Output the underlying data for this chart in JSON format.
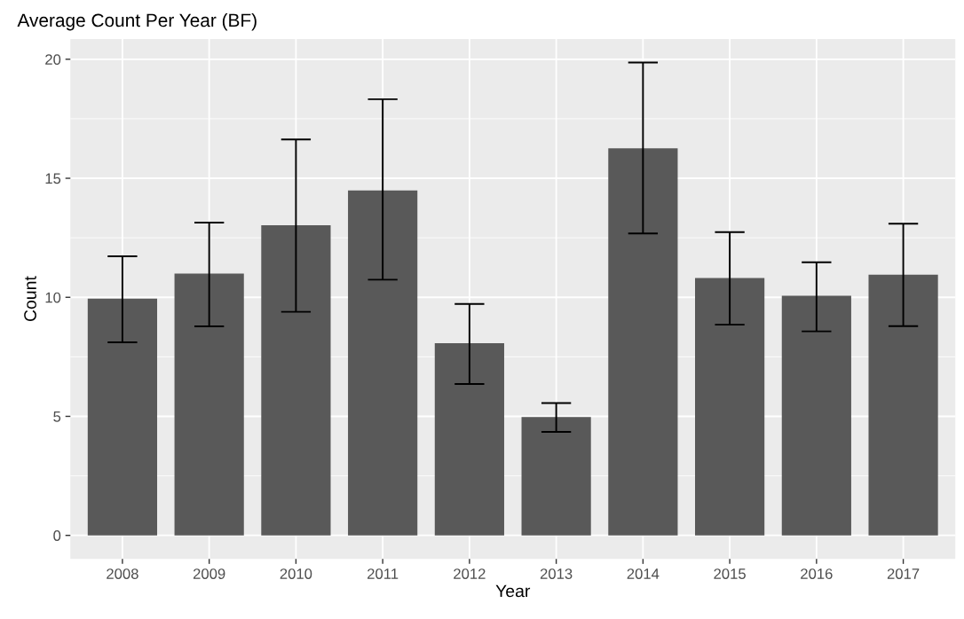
{
  "chart_data": {
    "type": "bar",
    "title": "Average Count Per Year (BF)",
    "xlabel": "Year",
    "ylabel": "Count",
    "categories": [
      "2008",
      "2009",
      "2010",
      "2011",
      "2012",
      "2013",
      "2014",
      "2015",
      "2016",
      "2017"
    ],
    "values": [
      9.94,
      11.0,
      13.03,
      14.49,
      8.07,
      4.97,
      16.26,
      10.81,
      10.07,
      10.95
    ],
    "errors": [
      [
        8.11,
        11.72
      ],
      [
        8.78,
        13.14
      ],
      [
        9.39,
        16.63
      ],
      [
        10.74,
        18.32
      ],
      [
        6.36,
        9.72
      ],
      [
        4.35,
        5.56
      ],
      [
        12.68,
        19.86
      ],
      [
        8.85,
        12.74
      ],
      [
        8.57,
        11.47
      ],
      [
        8.79,
        13.09
      ]
    ],
    "color": "#595959",
    "ylim": [
      -0.99,
      20.85
    ],
    "yticks": [
      0,
      5,
      10,
      15,
      20
    ],
    "grid": true
  }
}
